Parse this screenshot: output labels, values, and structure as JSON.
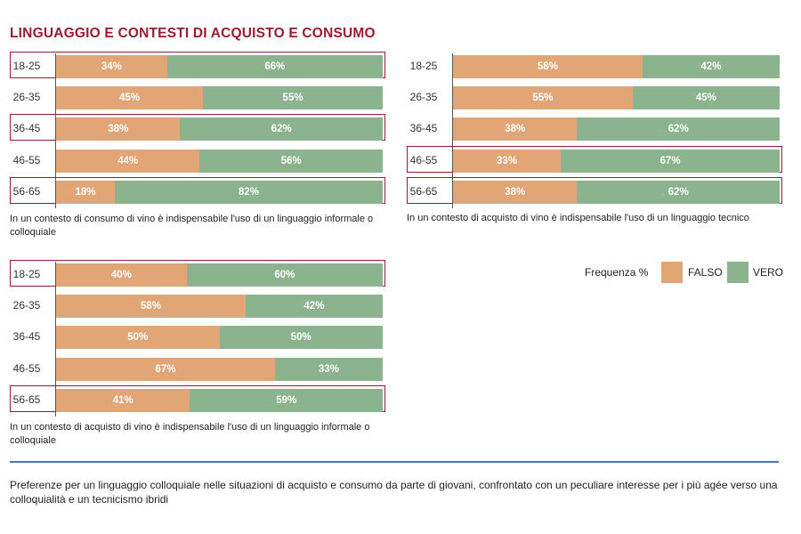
{
  "title": "LINGUAGGIO E CONTESTI DI ACQUISTO E CONSUMO",
  "colors": {
    "falso": "#e2a676",
    "vero": "#8ab38e",
    "highlight": "#9b1b30",
    "title": "#9b1b30",
    "divider": "#4a76b5"
  },
  "legend": {
    "title": "Frequenza %",
    "falso": "FALSO",
    "vero": "VERO"
  },
  "chart_data": [
    {
      "type": "bar",
      "orientation": "horizontal",
      "stacked": true,
      "caption": "In un contesto di consumo di vino è indispensabile l'uso di un linguaggio informale o colloquiale",
      "categories": [
        "18-25",
        "26-35",
        "36-45",
        "46-55",
        "56-65"
      ],
      "highlighted": [
        "18-25",
        "36-45",
        "56-65"
      ],
      "series": [
        {
          "name": "FALSO",
          "values": [
            34,
            45,
            38,
            44,
            18
          ],
          "labels": [
            "34%",
            "45%",
            "38%",
            "44%",
            "18%"
          ]
        },
        {
          "name": "VERO",
          "values": [
            66,
            55,
            62,
            56,
            82
          ],
          "labels": [
            "66%",
            "55%",
            "62%",
            "56%",
            "82%"
          ]
        }
      ]
    },
    {
      "type": "bar",
      "orientation": "horizontal",
      "stacked": true,
      "caption": "In un contesto di acquisto di vino è indispensabile l'uso di un linguaggio tecnico",
      "categories": [
        "18-25",
        "26-35",
        "36-45",
        "46-55",
        "56-65"
      ],
      "highlighted": [
        "46-55",
        "56-65"
      ],
      "series": [
        {
          "name": "FALSO",
          "values": [
            58,
            55,
            38,
            33,
            38
          ],
          "labels": [
            "58%",
            "55%",
            "38%",
            "33%",
            "38%"
          ]
        },
        {
          "name": "VERO",
          "values": [
            42,
            45,
            62,
            67,
            62
          ],
          "labels": [
            "42%",
            "45%",
            "62%",
            "67%",
            "62%"
          ]
        }
      ]
    },
    {
      "type": "bar",
      "orientation": "horizontal",
      "stacked": true,
      "caption": "In un contesto di acquisto di vino è indispensabile l'uso di un linguaggio informale o colloquiale",
      "categories": [
        "18-25",
        "26-35",
        "36-45",
        "46-55",
        "56-65"
      ],
      "highlighted": [
        "18-25",
        "56-65"
      ],
      "series": [
        {
          "name": "FALSO",
          "values": [
            40,
            58,
            50,
            67,
            41
          ],
          "labels": [
            "40%",
            "58%",
            "50%",
            "67%",
            "41%"
          ]
        },
        {
          "name": "VERO",
          "values": [
            60,
            42,
            50,
            33,
            59
          ],
          "labels": [
            "60%",
            "42%",
            "50%",
            "33%",
            "59%"
          ]
        }
      ]
    }
  ],
  "footer": "Preferenze per un linguaggio colloquiale nelle situazioni di acquisto e consumo da parte di giovani, confrontato con un peculiare interesse per i più agée verso una colloquialità e un tecnicismo ibridi"
}
